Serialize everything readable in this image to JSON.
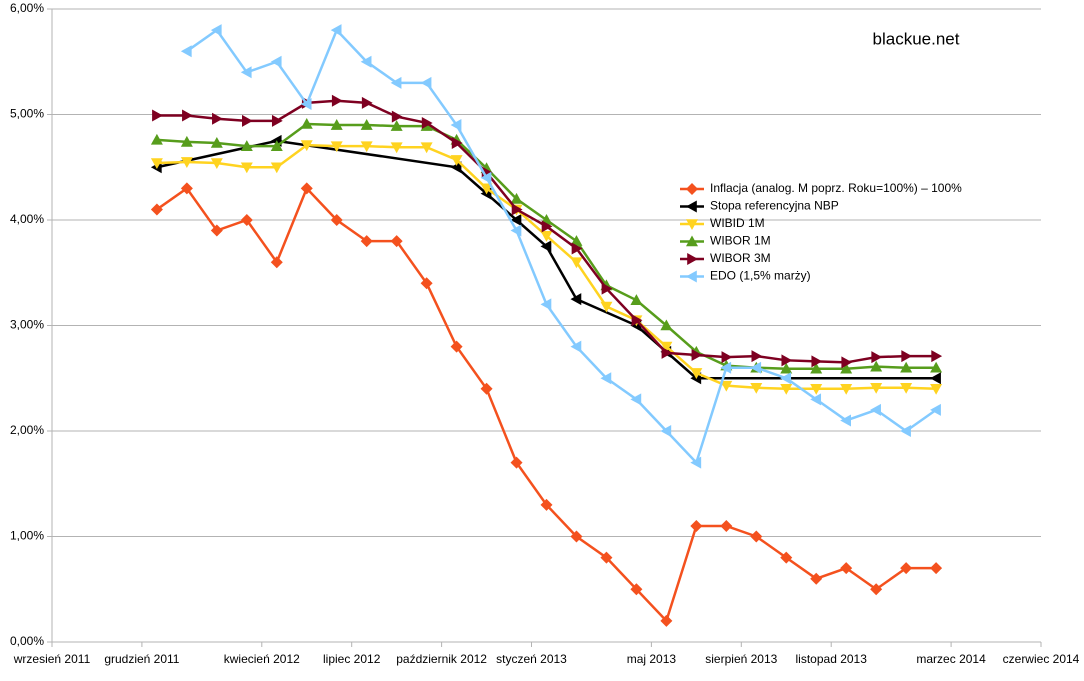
{
  "chart_data": {
    "type": "line",
    "watermark": "blackue.net",
    "x": [
      "2011-12",
      "2012-01",
      "2012-02",
      "2012-03",
      "2012-04",
      "2012-05",
      "2012-06",
      "2012-07",
      "2012-08",
      "2012-09",
      "2012-10",
      "2012-11",
      "2012-12",
      "2013-01",
      "2013-02",
      "2013-03",
      "2013-04",
      "2013-05",
      "2013-06",
      "2013-07",
      "2013-08",
      "2013-09",
      "2013-10",
      "2013-11",
      "2013-12",
      "2014-01",
      "2014-02"
    ],
    "xlim": [
      "2011-09",
      "2014-06"
    ],
    "xticks": [
      {
        "value": "2011-09",
        "label": "wrzesień 2011"
      },
      {
        "value": "2011-12",
        "label": "grudzień 2011"
      },
      {
        "value": "2012-04",
        "label": "kwiecień 2012"
      },
      {
        "value": "2012-07",
        "label": "lipiec 2012"
      },
      {
        "value": "2012-10",
        "label": "październik 2012"
      },
      {
        "value": "2013-01",
        "label": "styczeń 2013"
      },
      {
        "value": "2013-05",
        "label": "maj 2013"
      },
      {
        "value": "2013-08",
        "label": "sierpień 2013"
      },
      {
        "value": "2013-11",
        "label": "listopad 2013"
      },
      {
        "value": "2014-03",
        "label": "marzec 2014"
      },
      {
        "value": "2014-06",
        "label": "czerwiec 2014"
      }
    ],
    "ylim": [
      0,
      6
    ],
    "yticks": [
      {
        "value": 0,
        "label": "0,00%"
      },
      {
        "value": 1,
        "label": "1,00%"
      },
      {
        "value": 2,
        "label": "2,00%"
      },
      {
        "value": 3,
        "label": "3,00%"
      },
      {
        "value": 4,
        "label": "4,00%"
      },
      {
        "value": 5,
        "label": "5,00%"
      },
      {
        "value": 6,
        "label": "6,00%"
      }
    ],
    "grid": true,
    "legend": "right",
    "series": [
      {
        "name": "Inflacja (analog. M poprz. Roku=100%) – 100%",
        "color": "#f4511e",
        "marker": "diamond",
        "values": [
          4.1,
          4.3,
          3.9,
          4.0,
          3.6,
          4.3,
          4.0,
          3.8,
          3.8,
          3.4,
          2.8,
          2.4,
          1.7,
          1.3,
          1.0,
          0.8,
          0.5,
          0.2,
          1.1,
          1.1,
          1.0,
          0.8,
          0.6,
          0.7,
          0.5,
          0.7,
          0.7
        ]
      },
      {
        "name": "Stopa referencyjna NBP",
        "color": "#000000",
        "marker": "triangle-left",
        "x": [
          "2011-12",
          "2012-04",
          "2012-10",
          "2012-11",
          "2012-12",
          "2013-01",
          "2013-02",
          "2013-04",
          "2013-05",
          "2013-06",
          "2014-02"
        ],
        "values": [
          4.5,
          4.75,
          4.5,
          4.25,
          4.0,
          3.75,
          3.25,
          3.0,
          2.75,
          2.5,
          2.5
        ]
      },
      {
        "name": "WIBID 1M",
        "color": "#ffd320",
        "marker": "triangle-down",
        "values": [
          4.54,
          4.55,
          4.54,
          4.5,
          4.5,
          4.71,
          4.7,
          4.7,
          4.69,
          4.69,
          4.57,
          4.3,
          4.1,
          3.85,
          3.6,
          3.18,
          3.05,
          2.8,
          2.55,
          2.43,
          2.41,
          2.4,
          2.4,
          2.4,
          2.41,
          2.41,
          2.4
        ]
      },
      {
        "name": "WIBOR 1M",
        "color": "#579d1c",
        "marker": "triangle-up",
        "values": [
          4.76,
          4.74,
          4.73,
          4.7,
          4.7,
          4.91,
          4.9,
          4.9,
          4.89,
          4.89,
          4.76,
          4.49,
          4.2,
          4.0,
          3.8,
          3.38,
          3.24,
          3.0,
          2.75,
          2.62,
          2.6,
          2.59,
          2.59,
          2.59,
          2.61,
          2.6,
          2.6
        ]
      },
      {
        "name": "WIBOR 3M",
        "color": "#7e0021",
        "marker": "triangle-right",
        "values": [
          4.99,
          4.99,
          4.96,
          4.94,
          4.94,
          5.11,
          5.13,
          5.11,
          4.98,
          4.92,
          4.73,
          4.45,
          4.1,
          3.94,
          3.73,
          3.35,
          3.05,
          2.74,
          2.72,
          2.7,
          2.71,
          2.67,
          2.66,
          2.65,
          2.7,
          2.71,
          2.71
        ]
      },
      {
        "name": "EDO (1,5% marży)",
        "color": "#83caff",
        "marker": "triangle-left",
        "values": [
          null,
          5.6,
          5.8,
          5.4,
          5.5,
          5.1,
          5.8,
          5.5,
          5.3,
          5.3,
          4.9,
          4.4,
          3.9,
          3.2,
          2.8,
          2.5,
          2.3,
          2.0,
          1.7,
          2.6,
          2.6,
          2.5,
          2.3,
          2.1,
          2.2,
          2.0,
          2.2
        ]
      }
    ]
  }
}
